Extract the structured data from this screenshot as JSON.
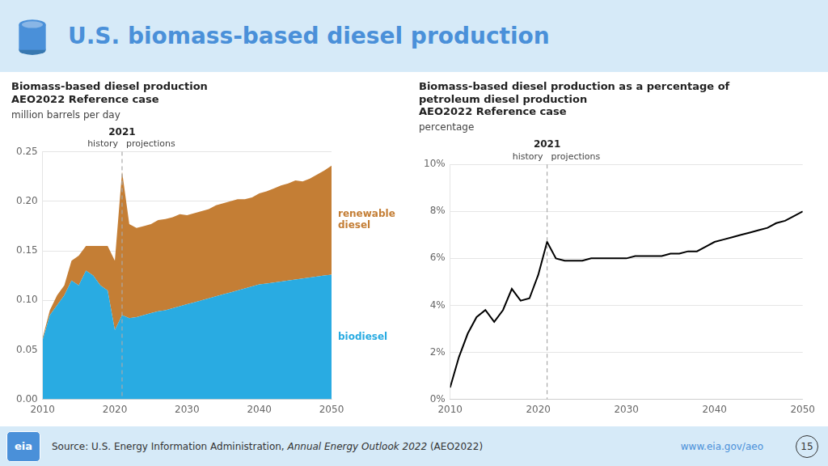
{
  "title": "U.S. biomass-based diesel production",
  "annotations": [
    "eia",
    "Source: U.S. Energy Information Administration, ",
    "Annual Energy Outlook 2022",
    " (AEO2022)",
    "www.eia.gov/aeo",
    "15"
  ],
  "chart_data": [
    {
      "type": "area",
      "title": [
        "Biomass-based diesel production",
        "AEO2022 Reference case"
      ],
      "ylabel": "million barrels per day",
      "stacked": true,
      "grid": true,
      "x": [
        2010,
        2011,
        2012,
        2013,
        2014,
        2015,
        2016,
        2017,
        2018,
        2019,
        2020,
        2021,
        2022,
        2023,
        2024,
        2025,
        2026,
        2027,
        2028,
        2029,
        2030,
        2031,
        2032,
        2033,
        2034,
        2035,
        2036,
        2037,
        2038,
        2039,
        2040,
        2041,
        2042,
        2043,
        2044,
        2045,
        2046,
        2047,
        2048,
        2049,
        2050
      ],
      "xlim": [
        2010,
        2050
      ],
      "xticks": [
        2010,
        2020,
        2030,
        2040,
        2050
      ],
      "ylim": [
        0.0,
        0.25
      ],
      "yticks": [
        {
          "value": 0.0,
          "label": "0.00"
        },
        0.05,
        {
          "value": 0.1,
          "label": "0.10"
        },
        0.15,
        {
          "value": 0.2,
          "label": "0.20"
        },
        0.25
      ],
      "annotations": [
        {
          "text": "2021",
          "x": 2021
        },
        {
          "text": "history"
        },
        {
          "text": "projections"
        }
      ],
      "series": [
        {
          "name": "biodiesel",
          "color": "#29ABE2",
          "values": [
            0.06,
            0.085,
            0.095,
            0.105,
            0.12,
            0.115,
            0.13,
            0.125,
            0.115,
            0.11,
            0.07,
            0.085,
            0.082,
            0.083,
            0.085,
            0.087,
            0.089,
            0.09,
            0.092,
            0.094,
            0.096,
            0.098,
            0.1,
            0.102,
            0.104,
            0.106,
            0.108,
            0.11,
            0.112,
            0.114,
            0.116,
            0.117,
            0.118,
            0.119,
            0.12,
            0.121,
            0.122,
            0.123,
            0.124,
            0.125,
            0.126
          ]
        },
        {
          "name": "renewable\ndiesel",
          "color": "#C47E35",
          "values": [
            0.002,
            0.005,
            0.01,
            0.01,
            0.02,
            0.03,
            0.025,
            0.03,
            0.04,
            0.045,
            0.07,
            0.145,
            0.095,
            0.09,
            0.09,
            0.09,
            0.092,
            0.092,
            0.092,
            0.093,
            0.09,
            0.09,
            0.09,
            0.09,
            0.092,
            0.092,
            0.092,
            0.092,
            0.09,
            0.09,
            0.092,
            0.093,
            0.095,
            0.097,
            0.098,
            0.1,
            0.098,
            0.1,
            0.103,
            0.106,
            0.11
          ]
        }
      ]
    },
    {
      "type": "line",
      "title": [
        "Biomass-based diesel production as a percentage of",
        "petroleum diesel production",
        "AEO2022 Reference case"
      ],
      "ylabel": "percentage",
      "grid": true,
      "x": [
        2010,
        2011,
        2012,
        2013,
        2014,
        2015,
        2016,
        2017,
        2018,
        2019,
        2020,
        2021,
        2022,
        2023,
        2024,
        2025,
        2026,
        2027,
        2028,
        2029,
        2030,
        2031,
        2032,
        2033,
        2034,
        2035,
        2036,
        2037,
        2038,
        2039,
        2040,
        2041,
        2042,
        2043,
        2044,
        2045,
        2046,
        2047,
        2048,
        2049,
        2050
      ],
      "xlim": [
        2010,
        2050
      ],
      "xticks": [
        2010,
        2020,
        2030,
        2040,
        2050
      ],
      "ylim": [
        0,
        10
      ],
      "yticks": [
        {
          "value": 0,
          "label": "0%"
        },
        {
          "value": 2,
          "label": "2%"
        },
        {
          "value": 4,
          "label": "4%"
        },
        {
          "value": 6,
          "label": "6%"
        },
        {
          "value": 8,
          "label": "8%"
        },
        {
          "value": 10,
          "label": "10%"
        }
      ],
      "annotations": [
        {
          "text": "2021",
          "x": 2021
        },
        {
          "text": "history"
        },
        {
          "text": "projections"
        }
      ],
      "color": "#000000",
      "values": [
        0.5,
        1.8,
        2.8,
        3.5,
        3.8,
        3.3,
        3.8,
        4.7,
        4.2,
        4.3,
        5.3,
        6.7,
        6.0,
        5.9,
        5.9,
        5.9,
        6.0,
        6.0,
        6.0,
        6.0,
        6.0,
        6.1,
        6.1,
        6.1,
        6.1,
        6.2,
        6.2,
        6.3,
        6.3,
        6.5,
        6.7,
        6.8,
        6.9,
        7.0,
        7.1,
        7.2,
        7.3,
        7.5,
        7.6,
        7.8,
        8.0
      ]
    }
  ]
}
